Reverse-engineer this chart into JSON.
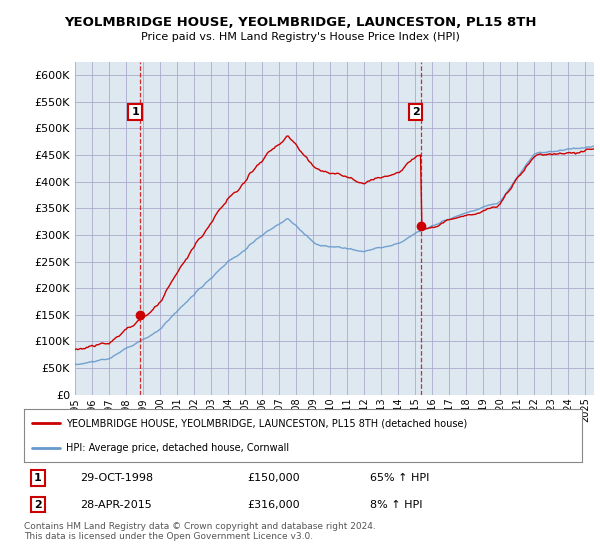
{
  "title": "YEOLMBRIDGE HOUSE, YEOLMBRIDGE, LAUNCESTON, PL15 8TH",
  "subtitle": "Price paid vs. HM Land Registry's House Price Index (HPI)",
  "yticks": [
    0,
    50000,
    100000,
    150000,
    200000,
    250000,
    300000,
    350000,
    400000,
    450000,
    500000,
    550000,
    600000
  ],
  "ylim": [
    0,
    625000
  ],
  "sale1_date": 1998.83,
  "sale1_price": 150000,
  "sale2_date": 2015.33,
  "sale2_price": 316000,
  "red_line_color": "#cc0000",
  "blue_line_color": "#6699cc",
  "vline_color": "#cc0000",
  "grid_color": "#aaaacc",
  "chart_bg_color": "#dde8f0",
  "background_color": "#ffffff",
  "legend_label_red": "YEOLMBRIDGE HOUSE, YEOLMBRIDGE, LAUNCESTON, PL15 8TH (detached house)",
  "legend_label_blue": "HPI: Average price, detached house, Cornwall",
  "sale1_info": "29-OCT-1998",
  "sale1_price_str": "£150,000",
  "sale1_hpi": "65% ↑ HPI",
  "sale2_info": "28-APR-2015",
  "sale2_price_str": "£316,000",
  "sale2_hpi": "8% ↑ HPI",
  "footer": "Contains HM Land Registry data © Crown copyright and database right 2024.\nThis data is licensed under the Open Government Licence v3.0.",
  "xmin": 1995,
  "xmax": 2025.5
}
